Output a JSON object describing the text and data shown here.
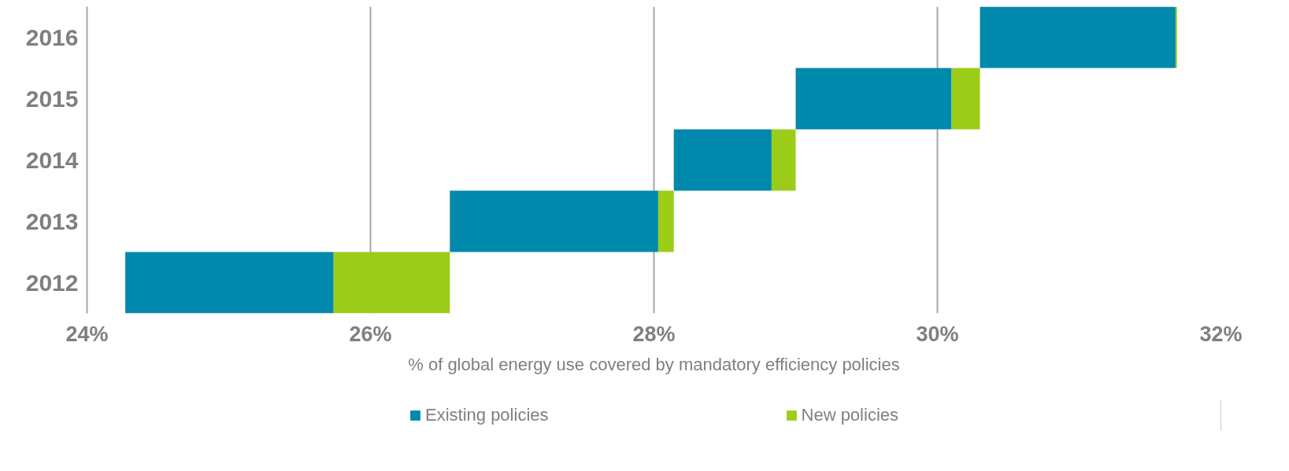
{
  "chart_data": {
    "type": "bar",
    "orientation": "horizontal",
    "categories": [
      "2016",
      "2015",
      "2014",
      "2013",
      "2012"
    ],
    "series": [
      {
        "name": "Existing policies",
        "color": "#0089ad",
        "base": [
          30.3,
          29.0,
          28.14,
          26.56,
          24.27
        ],
        "values": [
          1.38,
          1.1,
          0.69,
          1.47,
          1.47
        ]
      },
      {
        "name": "New policies",
        "color": "#9bcc18",
        "base": [
          31.68,
          30.1,
          28.83,
          28.03,
          25.74
        ],
        "values": [
          0.01,
          0.2,
          0.17,
          0.11,
          0.82
        ]
      }
    ],
    "xlim": [
      24,
      32
    ],
    "xticks": [
      {
        "value": 24,
        "label": "24%"
      },
      {
        "value": 26,
        "label": "26%"
      },
      {
        "value": 28,
        "label": "28%"
      },
      {
        "value": 30,
        "label": "30%"
      },
      {
        "value": 32,
        "label": "32%"
      }
    ],
    "xlabel": "% of global energy use covered by mandatory efficiency policies",
    "grid": "x",
    "legend": "bottom"
  }
}
